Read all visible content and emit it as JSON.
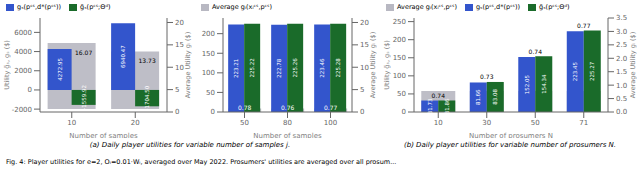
{
  "chart_data": [
    {
      "type": "bar",
      "xlabel": "Number of samples",
      "ylabel": "Utility g̃ₛ, gₛ ($)",
      "y2label": "Average Utility gᵢ ($)",
      "categories": [
        "10",
        "20"
      ],
      "series": [
        {
          "color": "#888899",
          "values": [
            4900.0,
            4000.0
          ],
          "bottoms": [
            -2000.0,
            -2000.0
          ],
          "avg": [
            16.07,
            13.73
          ]
        },
        {
          "name": "gₛ(pᶜˢ,d*(pᶜˢ))",
          "color": "#3355CC",
          "values": [
            4272.95,
            6940.47
          ]
        },
        {
          "name": "g̃ₛ(pᶜˢ;Θᵈ)",
          "color": "#1A6B2A",
          "values": [
            -1559.92,
            -1704.5
          ],
          "value_labels": [
            "-1559.92",
            "-1704.50"
          ]
        }
      ],
      "ylim": [
        -2300,
        7500
      ],
      "yticks": [
        -2000,
        0,
        2000,
        4000,
        6000
      ],
      "y2lim": [
        0,
        21
      ],
      "y2ticks": [
        0,
        5,
        10,
        15,
        20
      ],
      "data_labels": true,
      "grid": false,
      "legend": "top",
      "annotations": [
        "(a) Daily player utilities for variable number of samples j.",
        "Fig. 4: Player utilities for e=2, Oᵢ=0.01·Wᵢ, averaged over May 2022. Prosumers' utilities are averaged over all prosum..."
      ]
    },
    {
      "type": "bar",
      "xlabel": "Number of samples",
      "y2label": "Average Utility gᵢ ($)",
      "categories": [
        "50",
        "80",
        "100"
      ],
      "series": [
        {
          "name": "Average gᵢ(xᵢᶜˢ,pᶜˢ)",
          "color": "#888899",
          "axis": "y2",
          "values": [
            0.78,
            0.76,
            0.77
          ]
        },
        {
          "color": "#3355CC",
          "values": [
            223.21,
            222.78,
            223.46
          ]
        },
        {
          "color": "#1A6B2A",
          "values": [
            225.22,
            225.26,
            225.28
          ]
        }
      ],
      "ylim": [
        0,
        240
      ],
      "yticks": [
        0,
        50,
        100,
        150,
        200
      ],
      "y2lim": [
        0,
        21
      ],
      "y2ticks": [
        0,
        5,
        10,
        15,
        20
      ],
      "data_labels": true,
      "grid": false,
      "legend": "top"
    },
    {
      "type": "bar",
      "xlabel": "Number of prosumers N",
      "ylabel": "Utility g̃ₛ, gₛ ($)",
      "y2label": "Average Utility gᵢ ($)",
      "categories": [
        "10",
        "30",
        "50",
        "71"
      ],
      "series": [
        {
          "name": "Average gᵢ(xᵢᶜˢ,pᶜˢ)",
          "color": "#888899",
          "values": [
            58.0,
            58.0,
            58.0,
            58.0
          ],
          "avg": [
            0.74,
            0.73,
            0.74,
            0.77
          ]
        },
        {
          "name": "gₛ(pᶜˢ,d*(pᶜˢ))",
          "color": "#3355CC",
          "values": [
            31.73,
            81.66,
            152.05,
            223.45
          ]
        },
        {
          "name": "g̃ₛ(pᶜˢ;Θᵈ)",
          "color": "#1A6B2A",
          "values": [
            31.86,
            83.08,
            154.34,
            225.27
          ]
        }
      ],
      "ylim": [
        0,
        260
      ],
      "yticks": [
        0,
        50,
        100,
        150,
        200,
        250
      ],
      "y2lim": [
        0,
        3.5
      ],
      "y2ticks": [
        {
          "value": 0,
          "label": "0.0"
        },
        0.5,
        {
          "value": 1,
          "label": "1.0"
        },
        1.5,
        {
          "value": 2,
          "label": "2.0"
        },
        2.5,
        {
          "value": 3,
          "label": "3.0"
        },
        3.5
      ],
      "data_labels": true,
      "grid": false,
      "legend": "top",
      "annotations": [
        "(b) Daily player utilities for variable number of prosumers N."
      ]
    }
  ]
}
